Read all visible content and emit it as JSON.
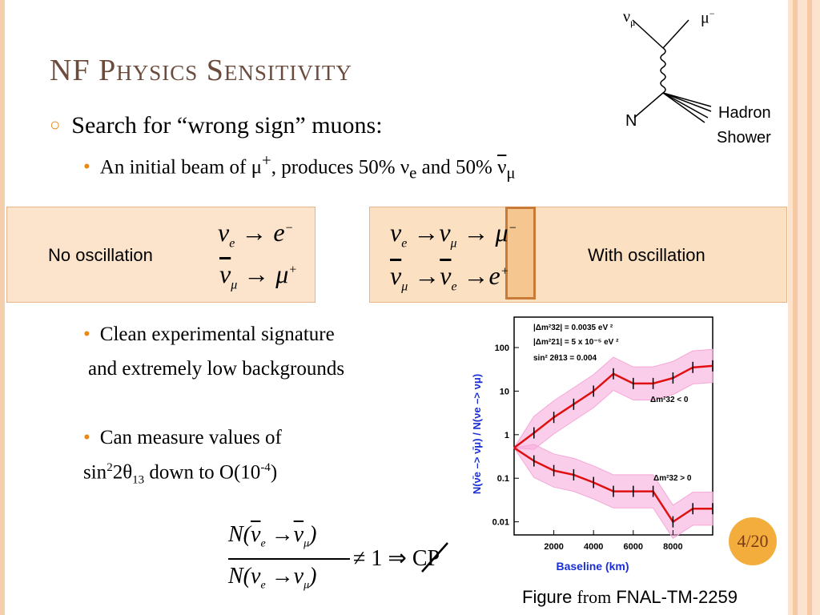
{
  "slide": {
    "title_first": "NF",
    "title_rest": "Physics Sensitivity",
    "bullet1": "Search for “wrong sign” muons:",
    "bullet2_a": "An initial beam of μ",
    "bullet2_b": "+",
    "bullet2_c": ", produces 50% ν",
    "bullet2_d": "e",
    "bullet2_e": " and 50% ",
    "bullet2_f": "ν",
    "bullet2_g": "μ",
    "no_osc_label": "No oscillation",
    "with_osc_label": "With oscillation",
    "clean_a": "Clean experimental signature",
    "clean_b": "and extremely low backgrounds",
    "measure_a": "Can measure values of",
    "measure_b": "sin",
    "measure_c": "2",
    "measure_d": "2θ",
    "measure_e": "13",
    "measure_f": " down to O(10",
    "measure_g": "-4",
    "measure_h": ")",
    "page": "4/20",
    "caption_a": "Figure ",
    "caption_b": "from",
    "caption_c": " FNAL-TM-2259"
  },
  "feynman": {
    "nu_mu": "ν",
    "nu_mu_sub": "μ",
    "mu_minus": "μ",
    "mu_minus_sup": "−",
    "n": "N",
    "hadron": "Hadron",
    "shower": "Shower"
  },
  "formulas": {
    "ve_to_e": "ν",
    "e_sym": "e",
    "numu_bar": "ν",
    "mu_plus": "μ",
    "ratio_tail": "≠ 1 ⇒ CP"
  },
  "colors": {
    "accent": "#e6881a",
    "title": "#6b4b3c",
    "plot_line": "#e01010",
    "plot_band": "#f6a6d8",
    "plot_text": "#1a2fd6"
  },
  "plot": {
    "legend1": "|Δm²32| = 0.0035 eV ²",
    "legend2": "|Δm²21| = 5 x 10⁻⁵ eV ²",
    "legend3": "sin² 2θ13 = 0.004",
    "ann_neg": "Δm²32 < 0",
    "ann_pos": "Δm²32 > 0",
    "ylabel": "N(ν̄e –> ν̄μ) / N(νe –> νμ)",
    "xlabel": "Baseline   (km)",
    "yticks": [
      "100",
      "10",
      "1",
      "0.1",
      "0.01"
    ],
    "xticks": [
      "2000",
      "4000",
      "6000",
      "8000"
    ]
  },
  "chart_data": {
    "type": "line",
    "title": "",
    "xlabel": "Baseline (km)",
    "ylabel": "N(ν̄e –> ν̄μ) / N(νe –> νμ)",
    "xlim": [
      0,
      10000
    ],
    "ylim": [
      0.005,
      500
    ],
    "yscale": "log",
    "x": [
      0,
      1000,
      2000,
      3000,
      4000,
      5000,
      6000,
      7000,
      8000,
      9000,
      10000
    ],
    "series": [
      {
        "name": "Δm²32 < 0",
        "values": [
          0.5,
          1.1,
          2.5,
          5.0,
          10.0,
          25,
          15,
          15,
          20,
          35,
          38
        ]
      },
      {
        "name": "Δm²32 > 0",
        "values": [
          0.5,
          0.25,
          0.15,
          0.12,
          0.08,
          0.05,
          0.05,
          0.05,
          0.01,
          0.02,
          0.02
        ]
      }
    ]
  }
}
